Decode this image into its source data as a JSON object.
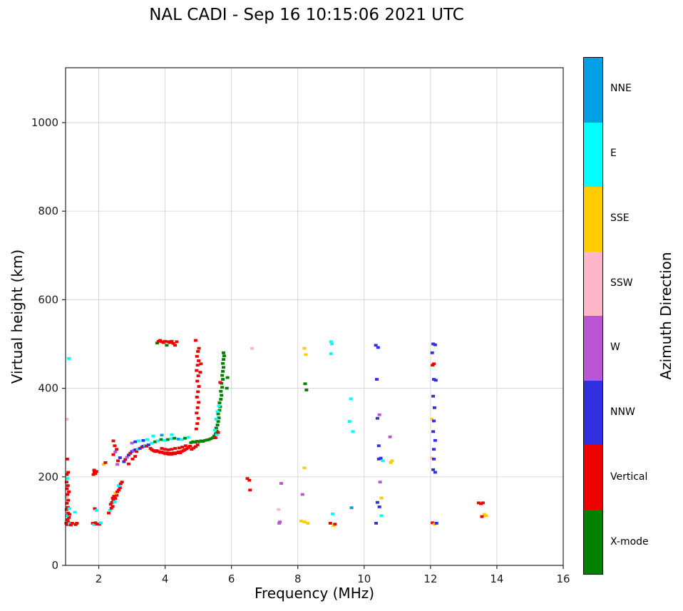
{
  "title": "NAL CADI - Sep 16 10:15:06 2021 UTC",
  "axes": {
    "xlabel": "Frequency (MHz)",
    "ylabel": "Virtual height (km)"
  },
  "colorbar": {
    "label": "Azimuth Direction",
    "entries": [
      {
        "label": "NNE",
        "color": "#00A1E4"
      },
      {
        "label": "E",
        "color": "#00FFFF"
      },
      {
        "label": "SSE",
        "color": "#FFCC00"
      },
      {
        "label": "SSW",
        "color": "#FFB6C9"
      },
      {
        "label": "W",
        "color": "#BA55D3"
      },
      {
        "label": "NNW",
        "color": "#3030E0"
      },
      {
        "label": "Vertical",
        "color": "#EE0000"
      },
      {
        "label": "X-mode",
        "color": "#007F00"
      }
    ]
  },
  "chart_data": {
    "type": "scatter",
    "title": "NAL CADI - Sep 16 10:15:06 2021 UTC",
    "xlabel": "Frequency (MHz)",
    "ylabel": "Virtual height (km)",
    "xlim": [
      1,
      16
    ],
    "ylim": [
      0,
      1124
    ],
    "x_ticks": [
      2,
      4,
      6,
      8,
      10,
      12,
      14,
      16
    ],
    "y_ticks": [
      0,
      200,
      400,
      600,
      800,
      1000
    ],
    "grid": true,
    "legend_position": "right-colorbar",
    "color_key": {
      "NNE": "#00A1E4",
      "E": "#00FFFF",
      "SSE": "#FFCC00",
      "SSW": "#FFB6C9",
      "W": "#BA55D3",
      "NNW": "#3030E0",
      "V": "#EE0000",
      "X": "#007F00"
    },
    "points": [
      [
        1.02,
        95,
        "V"
      ],
      [
        1.05,
        92,
        "V"
      ],
      [
        1.08,
        97,
        "V"
      ],
      [
        1.12,
        94,
        "E"
      ],
      [
        1.16,
        91,
        "V"
      ],
      [
        1.2,
        95,
        "V"
      ],
      [
        1.06,
        103,
        "V"
      ],
      [
        1.1,
        108,
        "V"
      ],
      [
        1.04,
        112,
        "E"
      ],
      [
        1.08,
        118,
        "V"
      ],
      [
        1.12,
        115,
        "V"
      ],
      [
        1.03,
        126,
        "V"
      ],
      [
        1.07,
        131,
        "V"
      ],
      [
        1.11,
        128,
        "E"
      ],
      [
        1.04,
        140,
        "V"
      ],
      [
        1.08,
        147,
        "V"
      ],
      [
        1.03,
        154,
        "SSW"
      ],
      [
        1.06,
        160,
        "V"
      ],
      [
        1.1,
        166,
        "V"
      ],
      [
        1.04,
        173,
        "V"
      ],
      [
        1.07,
        180,
        "V"
      ],
      [
        1.03,
        188,
        "V"
      ],
      [
        1.06,
        196,
        "E"
      ],
      [
        1.04,
        205,
        "V"
      ],
      [
        1.08,
        210,
        "V"
      ],
      [
        1.3,
        92,
        "V"
      ],
      [
        1.34,
        95,
        "V"
      ],
      [
        1.28,
        120,
        "E"
      ],
      [
        1.05,
        240,
        "V"
      ],
      [
        1.04,
        330,
        "SSW"
      ],
      [
        1.1,
        467,
        "E"
      ],
      [
        1.82,
        95,
        "V"
      ],
      [
        1.86,
        92,
        "E"
      ],
      [
        1.9,
        96,
        "V"
      ],
      [
        1.95,
        93,
        "V"
      ],
      [
        1.88,
        128,
        "V"
      ],
      [
        1.93,
        124,
        "E"
      ],
      [
        1.84,
        205,
        "V"
      ],
      [
        1.87,
        210,
        "V"
      ],
      [
        1.9,
        207,
        "V"
      ],
      [
        1.93,
        212,
        "V"
      ],
      [
        1.86,
        215,
        "V"
      ],
      [
        2.02,
        93,
        "V"
      ],
      [
        2.06,
        96,
        "E"
      ],
      [
        2.15,
        228,
        "SSE"
      ],
      [
        2.2,
        232,
        "V"
      ],
      [
        2.3,
        118,
        "V"
      ],
      [
        2.34,
        124,
        "E"
      ],
      [
        2.38,
        129,
        "V"
      ],
      [
        2.42,
        133,
        "V"
      ],
      [
        2.36,
        138,
        "V"
      ],
      [
        2.4,
        142,
        "V"
      ],
      [
        2.44,
        147,
        "V"
      ],
      [
        2.48,
        143,
        "E"
      ],
      [
        2.42,
        152,
        "V"
      ],
      [
        2.46,
        156,
        "V"
      ],
      [
        2.5,
        151,
        "V"
      ],
      [
        2.54,
        158,
        "V"
      ],
      [
        2.5,
        163,
        "SSE"
      ],
      [
        2.56,
        166,
        "V"
      ],
      [
        2.6,
        170,
        "V"
      ],
      [
        2.64,
        175,
        "V"
      ],
      [
        2.6,
        180,
        "E"
      ],
      [
        2.66,
        184,
        "V"
      ],
      [
        2.7,
        188,
        "V"
      ],
      [
        2.44,
        250,
        "V"
      ],
      [
        2.5,
        256,
        "W"
      ],
      [
        2.54,
        262,
        "V"
      ],
      [
        2.48,
        270,
        "V"
      ],
      [
        2.44,
        281,
        "V"
      ],
      [
        2.58,
        236,
        "V"
      ],
      [
        2.64,
        243,
        "NNW"
      ],
      [
        2.56,
        228,
        "W"
      ],
      [
        2.76,
        234,
        "NNW"
      ],
      [
        2.8,
        239,
        "V"
      ],
      [
        2.85,
        244,
        "W"
      ],
      [
        2.9,
        249,
        "NNW"
      ],
      [
        2.95,
        253,
        "V"
      ],
      [
        3.0,
        257,
        "NNW"
      ],
      [
        3.05,
        259,
        "W"
      ],
      [
        3.1,
        261,
        "NNW"
      ],
      [
        3.14,
        257,
        "V"
      ],
      [
        3.18,
        262,
        "E"
      ],
      [
        3.24,
        264,
        "NNW"
      ],
      [
        3.3,
        267,
        "V"
      ],
      [
        3.34,
        269,
        "NNW"
      ],
      [
        3.4,
        271,
        "E"
      ],
      [
        3.44,
        269,
        "V"
      ],
      [
        3.5,
        272,
        "NNW"
      ],
      [
        3.0,
        276,
        "W"
      ],
      [
        3.1,
        279,
        "NNW"
      ],
      [
        3.2,
        281,
        "E"
      ],
      [
        3.34,
        282,
        "NNW"
      ],
      [
        3.46,
        284,
        "E"
      ],
      [
        2.9,
        229,
        "V"
      ],
      [
        3.02,
        240,
        "V"
      ],
      [
        3.1,
        246,
        "V"
      ],
      [
        3.56,
        264,
        "V"
      ],
      [
        3.6,
        261,
        "V"
      ],
      [
        3.65,
        259,
        "V"
      ],
      [
        3.7,
        257,
        "V"
      ],
      [
        3.75,
        259,
        "V"
      ],
      [
        3.8,
        257,
        "V"
      ],
      [
        3.85,
        255,
        "V"
      ],
      [
        3.9,
        256,
        "V"
      ],
      [
        3.95,
        254,
        "V"
      ],
      [
        4.0,
        252,
        "V"
      ],
      [
        4.05,
        254,
        "V"
      ],
      [
        4.1,
        251,
        "V"
      ],
      [
        4.15,
        253,
        "V"
      ],
      [
        4.2,
        251,
        "V"
      ],
      [
        4.25,
        254,
        "V"
      ],
      [
        4.3,
        252,
        "V"
      ],
      [
        4.35,
        254,
        "V"
      ],
      [
        4.4,
        256,
        "V"
      ],
      [
        4.45,
        254,
        "V"
      ],
      [
        4.5,
        257,
        "V"
      ],
      [
        4.55,
        259,
        "V"
      ],
      [
        4.6,
        261,
        "V"
      ],
      [
        4.65,
        263,
        "V"
      ],
      [
        4.7,
        266,
        "V"
      ],
      [
        4.75,
        269,
        "V"
      ],
      [
        3.9,
        264,
        "V"
      ],
      [
        4.0,
        262,
        "V"
      ],
      [
        4.1,
        261,
        "V"
      ],
      [
        4.2,
        262,
        "V"
      ],
      [
        4.3,
        264,
        "V"
      ],
      [
        4.42,
        265,
        "V"
      ],
      [
        4.52,
        267,
        "V"
      ],
      [
        4.62,
        270,
        "V"
      ],
      [
        3.6,
        276,
        "E"
      ],
      [
        3.7,
        279,
        "X"
      ],
      [
        3.78,
        281,
        "E"
      ],
      [
        3.88,
        284,
        "X"
      ],
      [
        3.98,
        282,
        "E"
      ],
      [
        4.08,
        284,
        "X"
      ],
      [
        4.18,
        286,
        "E"
      ],
      [
        4.28,
        287,
        "X"
      ],
      [
        4.4,
        285,
        "NNE"
      ],
      [
        4.5,
        284,
        "E"
      ],
      [
        4.6,
        287,
        "X"
      ],
      [
        4.7,
        289,
        "E"
      ],
      [
        3.64,
        292,
        "E"
      ],
      [
        3.9,
        294,
        "NNE"
      ],
      [
        4.2,
        295,
        "E"
      ],
      [
        4.78,
        277,
        "X"
      ],
      [
        4.84,
        279,
        "X"
      ],
      [
        4.9,
        278,
        "X"
      ],
      [
        4.96,
        280,
        "X"
      ],
      [
        5.02,
        279,
        "X"
      ],
      [
        5.08,
        281,
        "X"
      ],
      [
        5.14,
        280,
        "X"
      ],
      [
        5.2,
        282,
        "X"
      ],
      [
        5.26,
        283,
        "X"
      ],
      [
        5.32,
        284,
        "X"
      ],
      [
        5.38,
        286,
        "X"
      ],
      [
        5.44,
        288,
        "X"
      ],
      [
        4.8,
        262,
        "V"
      ],
      [
        4.86,
        265,
        "V"
      ],
      [
        4.92,
        268,
        "V"
      ],
      [
        4.98,
        272,
        "V"
      ],
      [
        3.76,
        502,
        "X"
      ],
      [
        3.8,
        506,
        "V"
      ],
      [
        3.85,
        508,
        "V"
      ],
      [
        3.9,
        505,
        "V"
      ],
      [
        3.95,
        503,
        "V"
      ],
      [
        4.0,
        506,
        "V"
      ],
      [
        4.05,
        497,
        "X"
      ],
      [
        4.1,
        505,
        "V"
      ],
      [
        4.15,
        503,
        "V"
      ],
      [
        4.2,
        506,
        "V"
      ],
      [
        4.25,
        501,
        "V"
      ],
      [
        4.3,
        497,
        "V"
      ],
      [
        4.35,
        505,
        "V"
      ],
      [
        4.94,
        308,
        "V"
      ],
      [
        4.97,
        320,
        "V"
      ],
      [
        5.0,
        332,
        "V"
      ],
      [
        4.95,
        344,
        "V"
      ],
      [
        4.98,
        356,
        "V"
      ],
      [
        5.01,
        368,
        "V"
      ],
      [
        4.96,
        380,
        "V"
      ],
      [
        4.99,
        392,
        "V"
      ],
      [
        5.02,
        404,
        "V"
      ],
      [
        4.97,
        416,
        "V"
      ],
      [
        5.0,
        428,
        "V"
      ],
      [
        4.95,
        440,
        "V"
      ],
      [
        4.98,
        452,
        "V"
      ],
      [
        5.01,
        462,
        "V"
      ],
      [
        4.96,
        472,
        "V"
      ],
      [
        4.99,
        483,
        "V"
      ],
      [
        5.02,
        490,
        "V"
      ],
      [
        5.06,
        436,
        "V"
      ],
      [
        5.08,
        455,
        "V"
      ],
      [
        4.92,
        508,
        "V"
      ],
      [
        5.48,
        292,
        "X"
      ],
      [
        5.52,
        297,
        "X"
      ],
      [
        5.56,
        303,
        "X"
      ],
      [
        5.54,
        310,
        "X"
      ],
      [
        5.58,
        317,
        "X"
      ],
      [
        5.6,
        325,
        "X"
      ],
      [
        5.62,
        333,
        "X"
      ],
      [
        5.6,
        342,
        "X"
      ],
      [
        5.64,
        350,
        "X"
      ],
      [
        5.66,
        358,
        "X"
      ],
      [
        5.64,
        367,
        "X"
      ],
      [
        5.68,
        375,
        "X"
      ],
      [
        5.7,
        384,
        "X"
      ],
      [
        5.68,
        393,
        "X"
      ],
      [
        5.72,
        402,
        "X"
      ],
      [
        5.7,
        411,
        "X"
      ],
      [
        5.74,
        420,
        "X"
      ],
      [
        5.72,
        429,
        "X"
      ],
      [
        5.74,
        438,
        "X"
      ],
      [
        5.76,
        447,
        "X"
      ],
      [
        5.74,
        456,
        "X"
      ],
      [
        5.76,
        465,
        "X"
      ],
      [
        5.78,
        473,
        "X"
      ],
      [
        5.76,
        480,
        "X"
      ],
      [
        5.5,
        305,
        "E"
      ],
      [
        5.54,
        330,
        "E"
      ],
      [
        5.58,
        347,
        "E"
      ],
      [
        5.62,
        360,
        "E"
      ],
      [
        5.56,
        295,
        "E"
      ],
      [
        5.6,
        300,
        "V"
      ],
      [
        5.52,
        288,
        "V"
      ],
      [
        5.66,
        413,
        "V"
      ],
      [
        5.86,
        400,
        "X"
      ],
      [
        5.88,
        424,
        "X"
      ],
      [
        6.48,
        196,
        "V"
      ],
      [
        6.54,
        192,
        "V"
      ],
      [
        6.56,
        170,
        "V"
      ],
      [
        6.62,
        490,
        "SSW"
      ],
      [
        7.42,
        126,
        "SSW"
      ],
      [
        7.46,
        98,
        "W"
      ],
      [
        7.44,
        95,
        "W"
      ],
      [
        7.5,
        185,
        "W"
      ],
      [
        8.2,
        490,
        "SSE"
      ],
      [
        8.24,
        476,
        "SSE"
      ],
      [
        8.22,
        410,
        "X"
      ],
      [
        8.26,
        396,
        "X"
      ],
      [
        8.2,
        220,
        "SSE"
      ],
      [
        8.14,
        160,
        "W"
      ],
      [
        8.2,
        98,
        "SSE"
      ],
      [
        8.3,
        95,
        "SSE"
      ],
      [
        8.1,
        100,
        "SSE"
      ],
      [
        9.0,
        505,
        "E"
      ],
      [
        9.03,
        500,
        "E"
      ],
      [
        9.0,
        478,
        "E"
      ],
      [
        9.05,
        116,
        "E"
      ],
      [
        8.98,
        95,
        "V"
      ],
      [
        9.08,
        90,
        "SSE"
      ],
      [
        9.12,
        93,
        "V"
      ],
      [
        9.6,
        376,
        "E"
      ],
      [
        9.56,
        325,
        "E"
      ],
      [
        9.62,
        130,
        "NNE"
      ],
      [
        9.66,
        302,
        "E"
      ],
      [
        10.35,
        497,
        "NNW"
      ],
      [
        10.42,
        492,
        "NNW"
      ],
      [
        10.38,
        420,
        "NNW"
      ],
      [
        10.46,
        340,
        "W"
      ],
      [
        10.4,
        332,
        "NNW"
      ],
      [
        10.44,
        270,
        "NNW"
      ],
      [
        10.5,
        242,
        "NNW"
      ],
      [
        10.56,
        236,
        "E"
      ],
      [
        10.48,
        188,
        "W"
      ],
      [
        10.52,
        152,
        "SSE"
      ],
      [
        10.4,
        142,
        "NNW"
      ],
      [
        10.46,
        132,
        "NNW"
      ],
      [
        10.52,
        112,
        "E"
      ],
      [
        10.36,
        95,
        "NNW"
      ],
      [
        10.44,
        240,
        "NNW"
      ],
      [
        10.78,
        290,
        "W"
      ],
      [
        10.84,
        236,
        "SSE"
      ],
      [
        10.8,
        232,
        "SSE"
      ],
      [
        12.08,
        500,
        "NNW"
      ],
      [
        12.14,
        498,
        "NNW"
      ],
      [
        12.05,
        480,
        "NNW"
      ],
      [
        12.1,
        455,
        "V"
      ],
      [
        12.06,
        452,
        "V"
      ],
      [
        12.1,
        420,
        "NNW"
      ],
      [
        12.16,
        418,
        "NNW"
      ],
      [
        12.08,
        382,
        "NNW"
      ],
      [
        12.12,
        356,
        "NNW"
      ],
      [
        12.04,
        330,
        "SSE"
      ],
      [
        12.1,
        326,
        "NNW"
      ],
      [
        12.08,
        302,
        "NNW"
      ],
      [
        12.14,
        282,
        "NNW"
      ],
      [
        12.1,
        262,
        "NNW"
      ],
      [
        12.04,
        242,
        "SSE"
      ],
      [
        12.1,
        240,
        "NNW"
      ],
      [
        12.08,
        216,
        "NNW"
      ],
      [
        12.14,
        210,
        "NNW"
      ],
      [
        12.06,
        96,
        "V"
      ],
      [
        12.12,
        93,
        "SSE"
      ],
      [
        12.18,
        95,
        "NNW"
      ],
      [
        13.45,
        141,
        "V"
      ],
      [
        13.52,
        139,
        "V"
      ],
      [
        13.58,
        141,
        "V"
      ],
      [
        13.62,
        115,
        "SSE"
      ],
      [
        13.68,
        112,
        "SSE"
      ],
      [
        13.55,
        110,
        "V"
      ]
    ]
  }
}
